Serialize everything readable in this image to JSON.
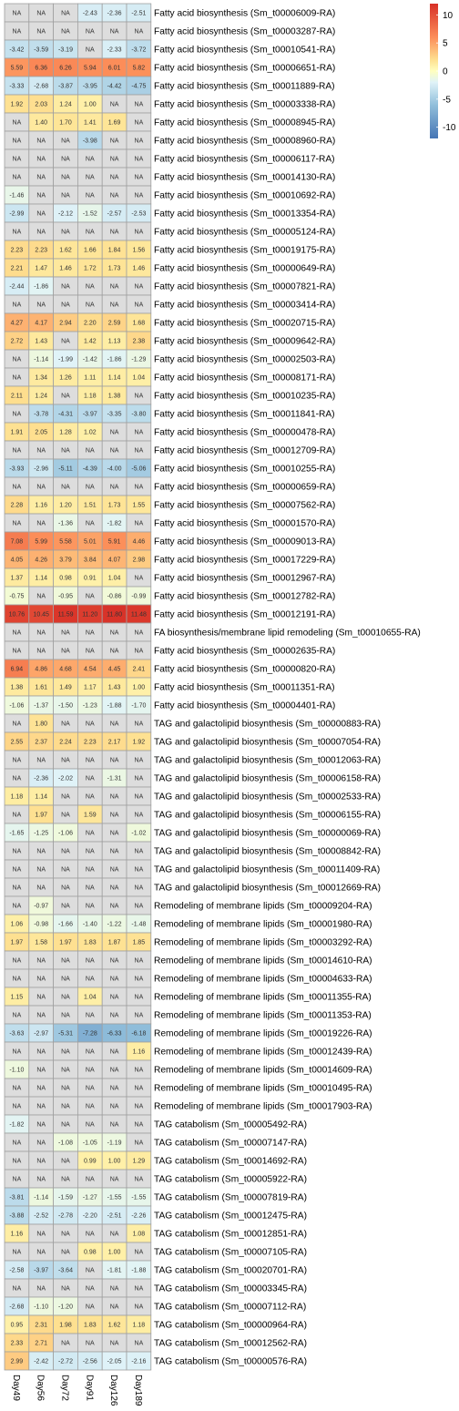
{
  "chart_data": {
    "type": "heatmap",
    "columns": [
      "Day49",
      "Day56",
      "Day72",
      "Day91",
      "Day126",
      "Day189"
    ],
    "na_label": "NA",
    "na_color": "#dddddd",
    "color_scale": {
      "ticks": [
        10,
        5,
        0,
        -5,
        -10
      ],
      "stops": [
        {
          "value": -12,
          "color": "#4575b4"
        },
        {
          "value": -6,
          "color": "#91bfdb"
        },
        {
          "value": -2,
          "color": "#e0f3f8"
        },
        {
          "value": 0,
          "color": "#ffffbf"
        },
        {
          "value": 2,
          "color": "#fee090"
        },
        {
          "value": 6,
          "color": "#fc8d59"
        },
        {
          "value": 12,
          "color": "#d73027"
        }
      ]
    },
    "rows": [
      {
        "label": "Fatty acid biosynthesis (Sm_t00006009-RA)",
        "values": [
          null,
          null,
          null,
          -2.43,
          -2.36,
          -2.51
        ]
      },
      {
        "label": "Fatty acid biosynthesis (Sm_t00003287-RA)",
        "values": [
          null,
          null,
          null,
          null,
          null,
          null
        ]
      },
      {
        "label": "Fatty acid biosynthesis (Sm_t00010541-RA)",
        "values": [
          -3.42,
          -3.59,
          -3.19,
          null,
          -2.33,
          -3.72
        ]
      },
      {
        "label": "Fatty acid biosynthesis (Sm_t00006651-RA)",
        "values": [
          5.59,
          6.36,
          6.26,
          5.94,
          6.01,
          5.82
        ]
      },
      {
        "label": "Fatty acid biosynthesis (Sm_t00011889-RA)",
        "values": [
          -3.33,
          -2.68,
          -3.87,
          -3.95,
          -4.42,
          -4.75
        ]
      },
      {
        "label": "Fatty acid biosynthesis (Sm_t00003338-RA)",
        "values": [
          1.92,
          2.03,
          1.24,
          1.0,
          null,
          null
        ]
      },
      {
        "label": "Fatty acid biosynthesis (Sm_t00008945-RA)",
        "values": [
          null,
          1.4,
          1.7,
          1.41,
          1.69,
          null
        ]
      },
      {
        "label": "Fatty acid biosynthesis (Sm_t00008960-RA)",
        "values": [
          null,
          null,
          null,
          -3.98,
          null,
          null
        ]
      },
      {
        "label": "Fatty acid biosynthesis (Sm_t00006117-RA)",
        "values": [
          null,
          null,
          null,
          null,
          null,
          null
        ]
      },
      {
        "label": "Fatty acid biosynthesis (Sm_t00014130-RA)",
        "values": [
          null,
          null,
          null,
          null,
          null,
          null
        ]
      },
      {
        "label": "Fatty acid biosynthesis (Sm_t00010692-RA)",
        "values": [
          -1.46,
          null,
          null,
          null,
          null,
          null
        ]
      },
      {
        "label": "Fatty acid biosynthesis (Sm_t00013354-RA)",
        "values": [
          -2.99,
          null,
          -2.12,
          -1.52,
          -2.57,
          -2.53
        ]
      },
      {
        "label": "Fatty acid biosynthesis (Sm_t00005124-RA)",
        "values": [
          null,
          null,
          null,
          null,
          null,
          null
        ]
      },
      {
        "label": "Fatty acid biosynthesis (Sm_t00019175-RA)",
        "values": [
          2.23,
          2.23,
          1.62,
          1.66,
          1.84,
          1.56
        ]
      },
      {
        "label": "Fatty acid biosynthesis (Sm_t00000649-RA)",
        "values": [
          2.21,
          1.47,
          1.46,
          1.72,
          1.73,
          1.46
        ]
      },
      {
        "label": "Fatty acid biosynthesis (Sm_t00007821-RA)",
        "values": [
          -2.44,
          -1.86,
          null,
          null,
          null,
          null
        ]
      },
      {
        "label": "Fatty acid biosynthesis (Sm_t00003414-RA)",
        "values": [
          null,
          null,
          null,
          null,
          null,
          null
        ]
      },
      {
        "label": "Fatty acid biosynthesis (Sm_t00020715-RA)",
        "values": [
          4.27,
          4.17,
          2.94,
          2.2,
          2.59,
          1.68
        ]
      },
      {
        "label": "Fatty acid biosynthesis (Sm_t00009642-RA)",
        "values": [
          2.72,
          1.43,
          null,
          1.42,
          1.13,
          2.38
        ]
      },
      {
        "label": "Fatty acid biosynthesis (Sm_t00002503-RA)",
        "values": [
          null,
          -1.14,
          -1.99,
          -1.42,
          -1.86,
          -1.29
        ]
      },
      {
        "label": "Fatty acid biosynthesis (Sm_t00008171-RA)",
        "values": [
          null,
          1.34,
          1.26,
          1.11,
          1.14,
          1.04
        ]
      },
      {
        "label": "Fatty acid biosynthesis (Sm_t00010235-RA)",
        "values": [
          2.11,
          1.24,
          null,
          1.18,
          1.38,
          null
        ]
      },
      {
        "label": "Fatty acid biosynthesis (Sm_t00011841-RA)",
        "values": [
          null,
          -3.78,
          -4.31,
          -3.97,
          -3.35,
          -3.8
        ]
      },
      {
        "label": "Fatty acid biosynthesis (Sm_t00000478-RA)",
        "values": [
          1.91,
          2.05,
          1.28,
          1.02,
          null,
          null
        ]
      },
      {
        "label": "Fatty acid biosynthesis (Sm_t00012709-RA)",
        "values": [
          null,
          null,
          null,
          null,
          null,
          null
        ]
      },
      {
        "label": "Fatty acid biosynthesis (Sm_t00010255-RA)",
        "values": [
          -3.93,
          -2.96,
          -5.11,
          -4.39,
          -4.0,
          -5.06
        ]
      },
      {
        "label": "Fatty acid biosynthesis (Sm_t00000659-RA)",
        "values": [
          null,
          null,
          null,
          null,
          null,
          null
        ]
      },
      {
        "label": "Fatty acid biosynthesis (Sm_t00007562-RA)",
        "values": [
          2.28,
          1.16,
          1.2,
          1.51,
          1.73,
          1.55
        ]
      },
      {
        "label": "Fatty acid biosynthesis (Sm_t00001570-RA)",
        "values": [
          null,
          null,
          -1.36,
          null,
          -1.82,
          null
        ]
      },
      {
        "label": "Fatty acid biosynthesis (Sm_t00009013-RA)",
        "values": [
          7.08,
          5.99,
          5.58,
          5.01,
          5.91,
          4.46
        ]
      },
      {
        "label": "Fatty acid biosynthesis (Sm_t00017229-RA)",
        "values": [
          4.05,
          4.26,
          3.79,
          3.84,
          4.07,
          2.98
        ]
      },
      {
        "label": "Fatty acid biosynthesis (Sm_t00012967-RA)",
        "values": [
          1.37,
          1.14,
          0.98,
          0.91,
          1.04,
          null
        ]
      },
      {
        "label": "Fatty acid biosynthesis (Sm_t00012782-RA)",
        "values": [
          -0.75,
          null,
          -0.95,
          null,
          -0.86,
          -0.99
        ]
      },
      {
        "label": "Fatty acid biosynthesis (Sm_t00012191-RA)",
        "values": [
          10.76,
          10.45,
          11.59,
          11.2,
          11.8,
          11.48
        ]
      },
      {
        "label": "FA biosynthesis/membrane lipid remodeling (Sm_t00010655-RA)",
        "values": [
          null,
          null,
          null,
          null,
          null,
          null
        ]
      },
      {
        "label": "Fatty acid biosynthesis (Sm_t00002635-RA)",
        "values": [
          null,
          null,
          null,
          null,
          null,
          null
        ]
      },
      {
        "label": "Fatty acid biosynthesis (Sm_t00000820-RA)",
        "values": [
          6.94,
          4.86,
          4.68,
          4.54,
          4.45,
          2.41
        ]
      },
      {
        "label": "Fatty acid biosynthesis (Sm_t00011351-RA)",
        "values": [
          1.38,
          1.61,
          1.49,
          1.17,
          1.43,
          1.0
        ]
      },
      {
        "label": "Fatty acid biosynthesis (Sm_t00004401-RA)",
        "values": [
          -1.06,
          -1.37,
          -1.5,
          -1.23,
          -1.88,
          -1.7
        ]
      },
      {
        "label": "TAG and galactolipid biosynthesis (Sm_t00000883-RA)",
        "values": [
          null,
          1.8,
          null,
          null,
          null,
          null
        ]
      },
      {
        "label": "TAG and galactolipid biosynthesis (Sm_t00007054-RA)",
        "values": [
          2.55,
          2.37,
          2.24,
          2.23,
          2.17,
          1.92
        ]
      },
      {
        "label": "TAG and galactolipid biosynthesis (Sm_t00012063-RA)",
        "values": [
          null,
          null,
          null,
          null,
          null,
          null
        ]
      },
      {
        "label": "TAG and galactolipid biosynthesis (Sm_t00006158-RA)",
        "values": [
          null,
          -2.36,
          -2.02,
          null,
          -1.31,
          null
        ]
      },
      {
        "label": "TAG and galactolipid biosynthesis (Sm_t00002533-RA)",
        "values": [
          1.18,
          1.14,
          null,
          null,
          null,
          null
        ]
      },
      {
        "label": "TAG and galactolipid biosynthesis (Sm_t00006155-RA)",
        "values": [
          null,
          1.97,
          null,
          1.59,
          null,
          null
        ]
      },
      {
        "label": "TAG and galactolipid biosynthesis (Sm_t00000069-RA)",
        "values": [
          -1.65,
          -1.25,
          -1.06,
          null,
          null,
          -1.02
        ]
      },
      {
        "label": "TAG and galactolipid biosynthesis (Sm_t00008842-RA)",
        "values": [
          null,
          null,
          null,
          null,
          null,
          null
        ]
      },
      {
        "label": "TAG and galactolipid biosynthesis (Sm_t00011409-RA)",
        "values": [
          null,
          null,
          null,
          null,
          null,
          null
        ]
      },
      {
        "label": "TAG and galactolipid biosynthesis (Sm_t00012669-RA)",
        "values": [
          null,
          null,
          null,
          null,
          null,
          null
        ]
      },
      {
        "label": "Remodeling of membrane lipids (Sm_t00009204-RA)",
        "values": [
          null,
          -0.97,
          null,
          null,
          null,
          null
        ]
      },
      {
        "label": "Remodeling of membrane lipids (Sm_t00001980-RA)",
        "values": [
          1.06,
          -0.98,
          -1.66,
          -1.4,
          -1.22,
          -1.48
        ]
      },
      {
        "label": "Remodeling of membrane lipids (Sm_t00003292-RA)",
        "values": [
          1.97,
          1.58,
          1.97,
          1.83,
          1.87,
          1.85
        ]
      },
      {
        "label": "Remodeling of membrane lipids (Sm_t00014610-RA)",
        "values": [
          null,
          null,
          null,
          null,
          null,
          null
        ]
      },
      {
        "label": "Remodeling of membrane lipids (Sm_t00004633-RA)",
        "values": [
          null,
          null,
          null,
          null,
          null,
          null
        ]
      },
      {
        "label": "Remodeling of membrane lipids (Sm_t00011355-RA)",
        "values": [
          1.15,
          null,
          null,
          1.04,
          null,
          null
        ]
      },
      {
        "label": "Remodeling of membrane lipids (Sm_t00011353-RA)",
        "values": [
          null,
          null,
          null,
          null,
          null,
          null
        ]
      },
      {
        "label": "Remodeling of membrane lipids (Sm_t00019226-RA)",
        "values": [
          -3.63,
          -2.97,
          -5.31,
          -7.28,
          -6.33,
          -6.18
        ]
      },
      {
        "label": "Remodeling of membrane lipids (Sm_t00012439-RA)",
        "values": [
          null,
          null,
          null,
          null,
          null,
          1.16
        ]
      },
      {
        "label": "Remodeling of membrane lipids (Sm_t00014609-RA)",
        "values": [
          -1.1,
          null,
          null,
          null,
          null,
          null
        ]
      },
      {
        "label": "Remodeling of membrane lipids (Sm_t00010495-RA)",
        "values": [
          null,
          null,
          null,
          null,
          null,
          null
        ]
      },
      {
        "label": "Remodeling of membrane lipids (Sm_t00017903-RA)",
        "values": [
          null,
          null,
          null,
          null,
          null,
          null
        ]
      },
      {
        "label": "TAG catabolism (Sm_t00005492-RA)",
        "values": [
          -1.82,
          null,
          null,
          null,
          null,
          null
        ]
      },
      {
        "label": "TAG catabolism (Sm_t00007147-RA)",
        "values": [
          null,
          null,
          -1.08,
          -1.05,
          -1.19,
          null
        ]
      },
      {
        "label": "TAG catabolism (Sm_t00014692-RA)",
        "values": [
          null,
          null,
          null,
          0.99,
          1.0,
          1.29
        ]
      },
      {
        "label": "TAG catabolism (Sm_t00005922-RA)",
        "values": [
          null,
          null,
          null,
          null,
          null,
          null
        ]
      },
      {
        "label": "TAG catabolism (Sm_t00007819-RA)",
        "values": [
          -3.81,
          -1.14,
          -1.59,
          -1.27,
          -1.55,
          -1.55
        ]
      },
      {
        "label": "TAG catabolism (Sm_t00012475-RA)",
        "values": [
          -3.88,
          -2.52,
          -2.78,
          -2.2,
          -2.51,
          -2.26
        ]
      },
      {
        "label": "TAG catabolism (Sm_t00012851-RA)",
        "values": [
          1.16,
          null,
          null,
          null,
          null,
          1.08
        ]
      },
      {
        "label": "TAG catabolism (Sm_t00007105-RA)",
        "values": [
          null,
          null,
          null,
          0.98,
          1.0,
          null
        ]
      },
      {
        "label": "TAG catabolism (Sm_t00020701-RA)",
        "values": [
          -2.58,
          -3.97,
          -3.64,
          null,
          -1.81,
          -1.88
        ]
      },
      {
        "label": "TAG catabolism (Sm_t00003345-RA)",
        "values": [
          null,
          null,
          null,
          null,
          null,
          null
        ]
      },
      {
        "label": "TAG catabolism (Sm_t00007112-RA)",
        "values": [
          -2.68,
          -1.1,
          -1.2,
          null,
          null,
          null
        ]
      },
      {
        "label": "TAG catabolism (Sm_t00000964-RA)",
        "values": [
          0.95,
          2.31,
          1.98,
          1.83,
          1.62,
          1.18
        ]
      },
      {
        "label": "TAG catabolism (Sm_t00012562-RA)",
        "values": [
          2.33,
          2.71,
          null,
          null,
          null,
          null
        ]
      },
      {
        "label": "TAG catabolism (Sm_t00000576-RA)",
        "values": [
          2.99,
          -2.42,
          -2.72,
          -2.56,
          -2.05,
          -2.16
        ]
      }
    ]
  }
}
